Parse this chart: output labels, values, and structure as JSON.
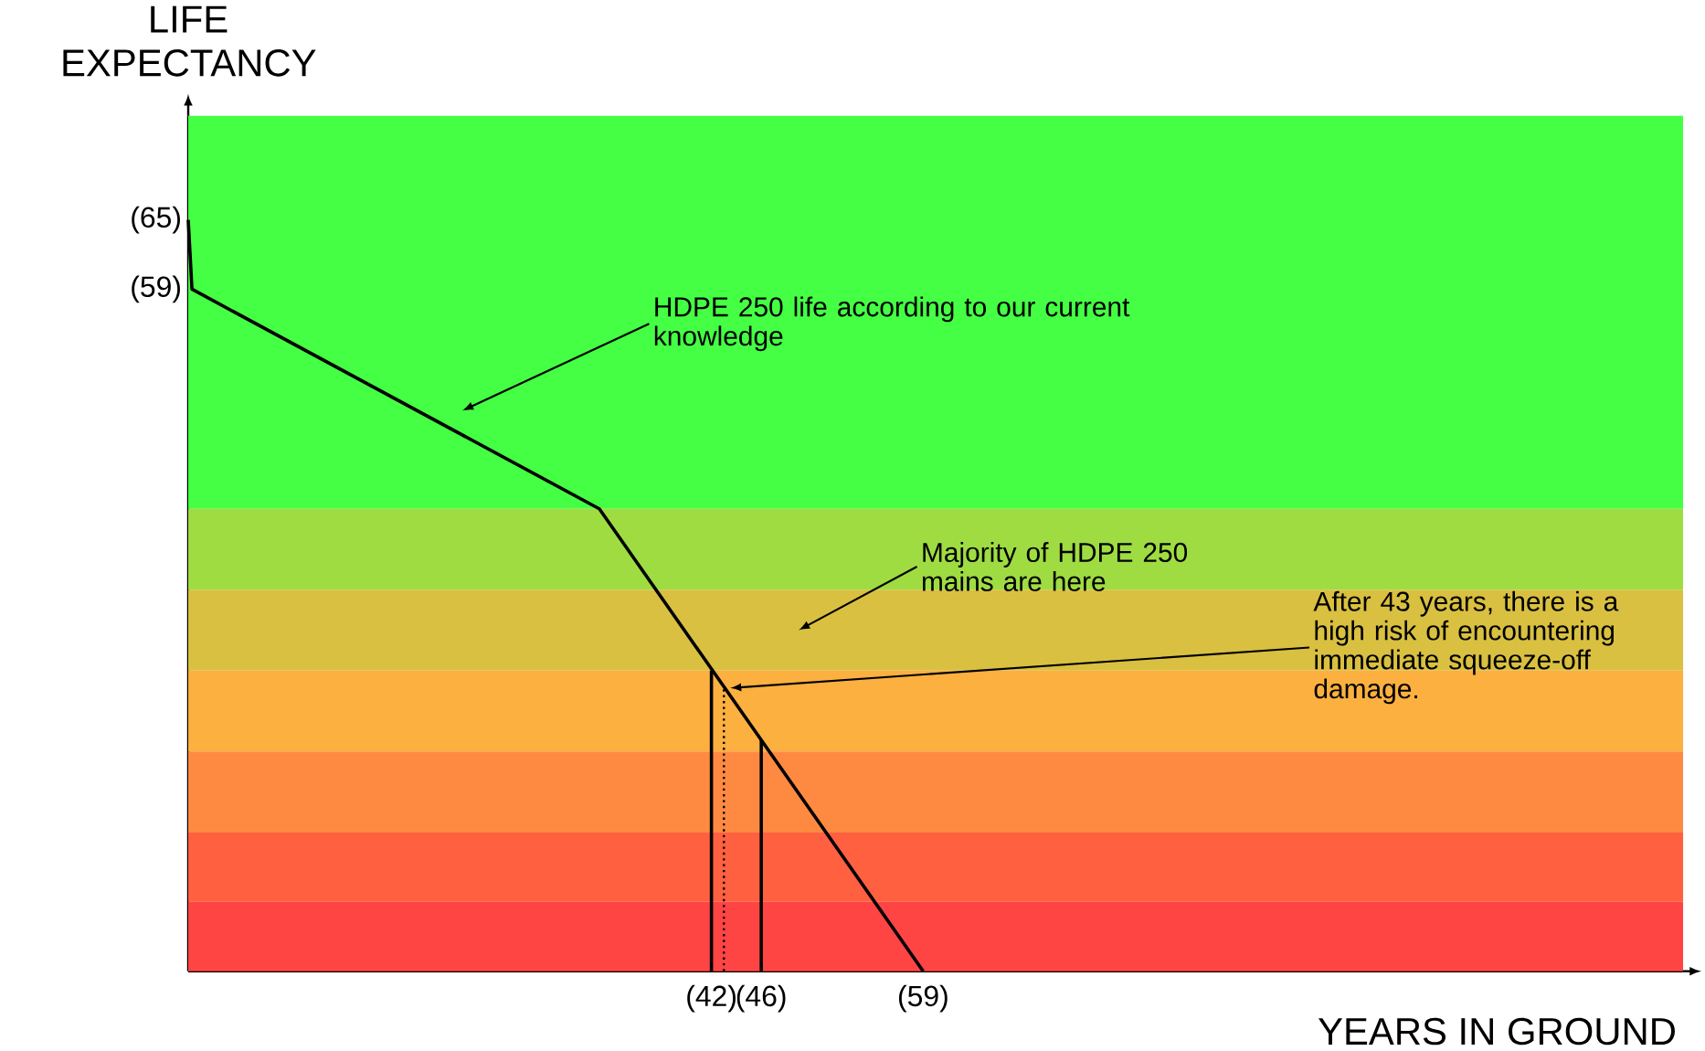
{
  "chart_data": {
    "type": "line",
    "xlabel": "YEARS IN GROUND",
    "ylabel": "LIFE EXPECTANCY",
    "xlim": [
      0,
      120
    ],
    "ylim": [
      0,
      74
    ],
    "xticks": [
      {
        "value": 42,
        "label": "(42)"
      },
      {
        "value": 46,
        "label": "(46)"
      },
      {
        "value": 59,
        "label": "(59)"
      }
    ],
    "yticks": [
      {
        "value": 59,
        "label": "(59)"
      },
      {
        "value": 65,
        "label": "(65)"
      }
    ],
    "marker": "none",
    "series": [
      {
        "color": "#000000",
        "x": [
          0,
          0.3,
          33,
          59
        ],
        "values": [
          65,
          59,
          40,
          0
        ],
        "line_style": "solid"
      },
      {
        "color": "#000000",
        "x": [
          42,
          42
        ],
        "values": [
          0,
          26
        ],
        "line_style": "solid"
      },
      {
        "color": "#000000",
        "x": [
          46,
          46
        ],
        "values": [
          0,
          20
        ],
        "line_style": "solid"
      },
      {
        "color": "#000000",
        "x": [
          43,
          43
        ],
        "values": [
          0,
          24.6
        ],
        "line_style": "dotted"
      }
    ],
    "bands": [
      {
        "axis": "y",
        "from": 40,
        "to": 74,
        "color": "#44ff44"
      },
      {
        "axis": "y",
        "from": 33,
        "to": 40,
        "color": "#9fdc42"
      },
      {
        "axis": "y",
        "from": 26,
        "to": 33,
        "color": "#d9c040"
      },
      {
        "axis": "y",
        "from": 19,
        "to": 26,
        "color": "#fbb040"
      },
      {
        "axis": "y",
        "from": 12,
        "to": 19,
        "color": "#fe8a42"
      },
      {
        "axis": "y",
        "from": 6,
        "to": 12,
        "color": "#ff6040"
      },
      {
        "axis": "y",
        "from": 0,
        "to": 6,
        "color": "#ff4444"
      }
    ],
    "annotations": [
      "HDPE 250 life according to our current knowledge",
      "Majority of HDPE 250 mains are here",
      {
        "text": "After 43 years, there is a high risk of encountering immediate squeeze-off damage.",
        "x": 43.5,
        "y": 24.5
      }
    ]
  }
}
